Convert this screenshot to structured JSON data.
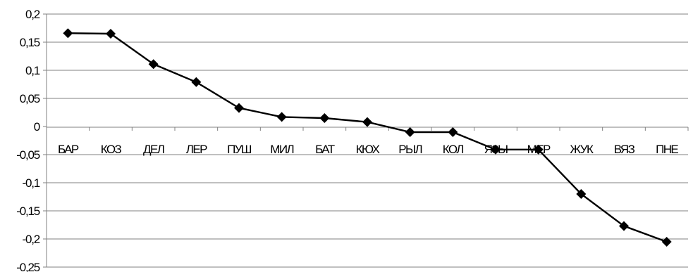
{
  "chart_data": {
    "type": "line",
    "title": "",
    "xlabel": "",
    "ylabel": "",
    "categories": [
      "БАР",
      "КОЗ",
      "ДЕЛ",
      "ЛЕР",
      "ПУШ",
      "МИЛ",
      "БАТ",
      "КЮХ",
      "РЫЛ",
      "КОЛ",
      "ЯЗЫ",
      "МЕР",
      "ЖУК",
      "ВЯЗ",
      "ПНЕ"
    ],
    "series": [
      {
        "values": [
          0.166,
          0.165,
          0.111,
          0.079,
          0.033,
          0.017,
          0.015,
          0.008,
          -0.01,
          -0.01,
          -0.041,
          -0.041,
          -0.12,
          -0.177,
          -0.205
        ]
      }
    ],
    "ylim": [
      -0.25,
      0.2
    ],
    "yticks": [
      0.2,
      0.15,
      0.1,
      0.05,
      0,
      -0.05,
      -0.1,
      -0.15,
      -0.2,
      -0.25
    ],
    "ytick_labels": [
      "0,2",
      "0,15",
      "0,1",
      "0,05",
      "0",
      "-0,05",
      "-0,1",
      "-0,15",
      "-0,2",
      "-0,25"
    ],
    "grid": true,
    "legend": "none",
    "series_color": "#000000",
    "marker": "diamond"
  }
}
